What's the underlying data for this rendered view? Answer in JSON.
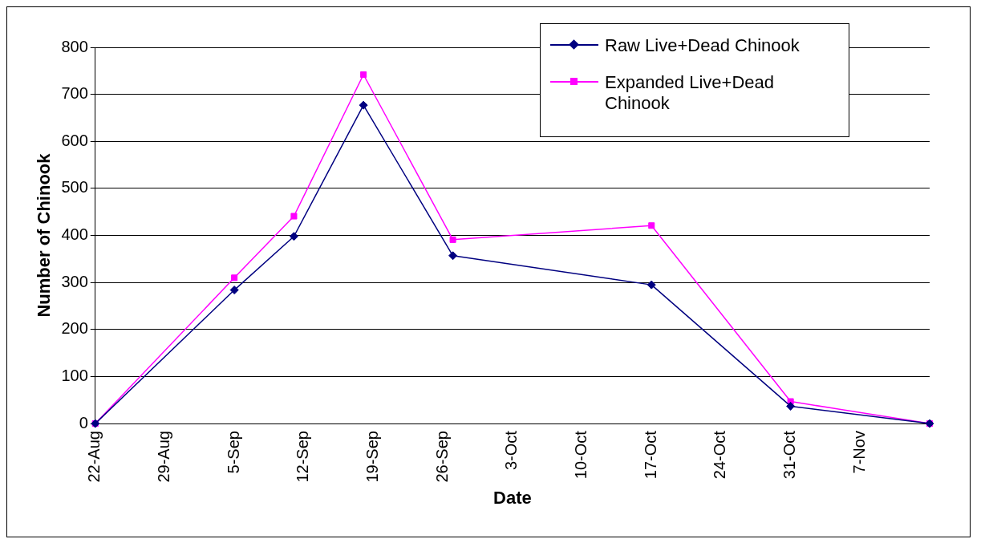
{
  "chart_data": {
    "type": "line",
    "xlabel": "Date",
    "ylabel": "Number of Chinook",
    "x": [
      "--08-22",
      "--09-05",
      "--09-11",
      "--09-18",
      "--09-27",
      "--10-17",
      "--10-31",
      "--11-14"
    ],
    "series": [
      {
        "name": "Raw Live+Dead Chinook",
        "color": "#000080",
        "marker": "diamond",
        "values": [
          0,
          284,
          398,
          677,
          357,
          295,
          37,
          0
        ]
      },
      {
        "name": "Expanded Live+Dead Chinook",
        "color": "#ff00ff",
        "marker": "square",
        "values": [
          0,
          310,
          441,
          742,
          391,
          421,
          47,
          0
        ]
      }
    ],
    "xlim": [
      "--08-22",
      "--11-14"
    ],
    "xticks": [
      {
        "value": "--08-22",
        "label": "22-Aug"
      },
      {
        "value": "--08-29",
        "label": "29-Aug"
      },
      {
        "value": "--09-05",
        "label": "5-Sep"
      },
      {
        "value": "--09-12",
        "label": "12-Sep"
      },
      {
        "value": "--09-19",
        "label": "19-Sep"
      },
      {
        "value": "--09-26",
        "label": "26-Sep"
      },
      {
        "value": "--10-03",
        "label": "3-Oct"
      },
      {
        "value": "--10-10",
        "label": "10-Oct"
      },
      {
        "value": "--10-17",
        "label": "17-Oct"
      },
      {
        "value": "--10-24",
        "label": "24-Oct"
      },
      {
        "value": "--10-31",
        "label": "31-Oct"
      },
      {
        "value": "--11-07",
        "label": "7-Nov"
      }
    ],
    "ylim": [
      0,
      800
    ],
    "yticks": [
      0,
      100,
      200,
      300,
      400,
      500,
      600,
      700,
      800
    ],
    "grid": "y",
    "legend": "top right",
    "line_style": "solid"
  }
}
